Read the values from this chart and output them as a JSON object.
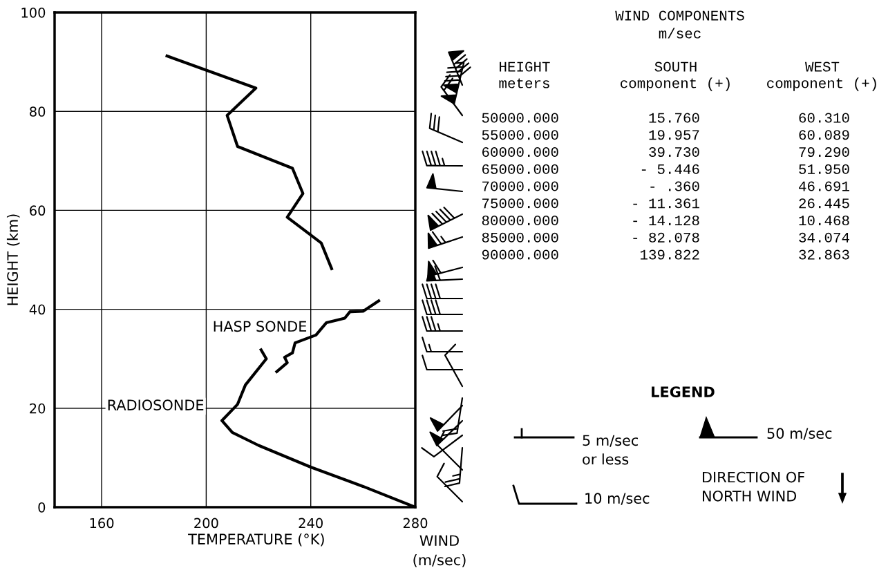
{
  "chart_data": [
    {
      "type": "line",
      "xlabel": "TEMPERATURE (°K)",
      "ylabel": "HEIGHT (km)",
      "xlim": [
        142,
        280
      ],
      "ylim": [
        0,
        100
      ],
      "xticks": [
        160,
        200,
        240,
        280
      ],
      "yticks": [
        0,
        20,
        40,
        60,
        80,
        100
      ],
      "grid": true,
      "line_style": "solid",
      "series": [
        {
          "color": "#000000",
          "x": [
            248,
            244,
            231,
            237,
            233,
            212,
            208,
            219,
            185
          ],
          "values": [
            48.2,
            53.4,
            58.6,
            63.4,
            68.5,
            72.9,
            79.2,
            84.7,
            91.2
          ]
        },
        {
          "name": "HASP SONDE",
          "color": "#000000",
          "x": [
            227,
            231,
            230,
            233,
            234,
            236,
            242,
            246,
            253,
            255,
            260,
            266
          ],
          "values": [
            27.4,
            29.2,
            30.3,
            31.2,
            33.2,
            33.6,
            34.8,
            37.3,
            38.2,
            39.5,
            39.6,
            41.7
          ]
        },
        {
          "name": "RADIOSONDE",
          "color": "#000000",
          "x": [
            280,
            260,
            240,
            220,
            210,
            206,
            212,
            215,
            223,
            221
          ],
          "values": [
            0,
            4.2,
            8.1,
            12.5,
            15.1,
            17.5,
            20.8,
            24.7,
            30.0,
            31.8
          ]
        }
      ]
    },
    {
      "type": "other",
      "title": "WIND COMPONENTS",
      "subtitle": "m/sec",
      "ylabel": "HEIGHT\nmeters",
      "xlabel": "WIND\n(m/sec)",
      "categories": [
        "50000.000",
        "55000.000",
        "60000.000",
        "65000.000",
        "70000.000",
        "75000.000",
        "80000.000",
        "85000.000",
        "90000.000"
      ],
      "series": [
        {
          "name": "SOUTH\ncomponent (+)",
          "values": [
            15.76,
            19.957,
            39.73,
            -5.446,
            -0.36,
            -11.361,
            -14.128,
            -82.078,
            139.822
          ],
          "value_labels": [
            "15.760",
            "19.957",
            "39.730",
            "- 5.446",
            "- .360",
            "- 11.361",
            "- 14.128",
            "- 82.078",
            "139.822"
          ]
        },
        {
          "name": "WEST\ncomponent (+)",
          "values": [
            60.31,
            60.089,
            79.29,
            51.95,
            46.691,
            26.445,
            10.468,
            34.074,
            32.863
          ],
          "value_labels": [
            "60.310",
            "60.089",
            "79.290",
            "51.950",
            "46.691",
            "26.445",
            "10.468",
            "34.074",
            "32.863"
          ]
        }
      ],
      "annotations": [
        "LEGEND",
        "5 m/sec\nor less",
        "50 m/sec",
        "10 m/sec",
        "DIRECTION OF\nNORTH WIND"
      ]
    }
  ]
}
